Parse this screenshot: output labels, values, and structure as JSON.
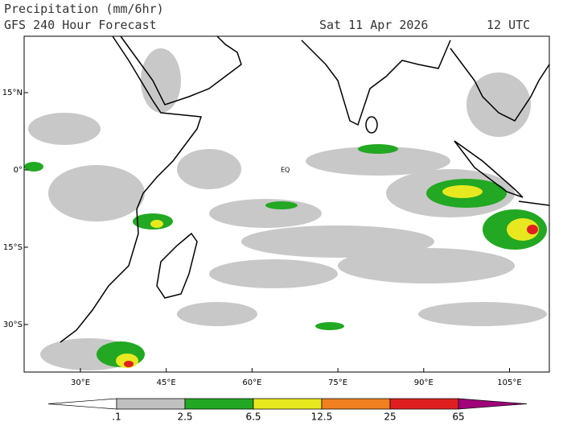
{
  "header": {
    "title": "Precipitation (mm/6hr)",
    "subtitle": "GFS 240 Hour Forecast",
    "date": "Sat 11 Apr 2026",
    "time": "12 UTC"
  },
  "map": {
    "lat_labels": [
      "15°N",
      "0°",
      "15°S",
      "30°S"
    ],
    "lon_labels": [
      "30°E",
      "45°E",
      "60°E",
      "75°E",
      "90°E",
      "105°E"
    ],
    "annotation": "EQ"
  },
  "legend": {
    "labels": [
      ".1",
      "2.5",
      "6.5",
      "12.5",
      "25",
      "65"
    ],
    "colors": [
      "#ffffff",
      "#c0c0c0",
      "#22a822",
      "#e8e820",
      "#f08020",
      "#e02020",
      "#a0007a"
    ]
  }
}
